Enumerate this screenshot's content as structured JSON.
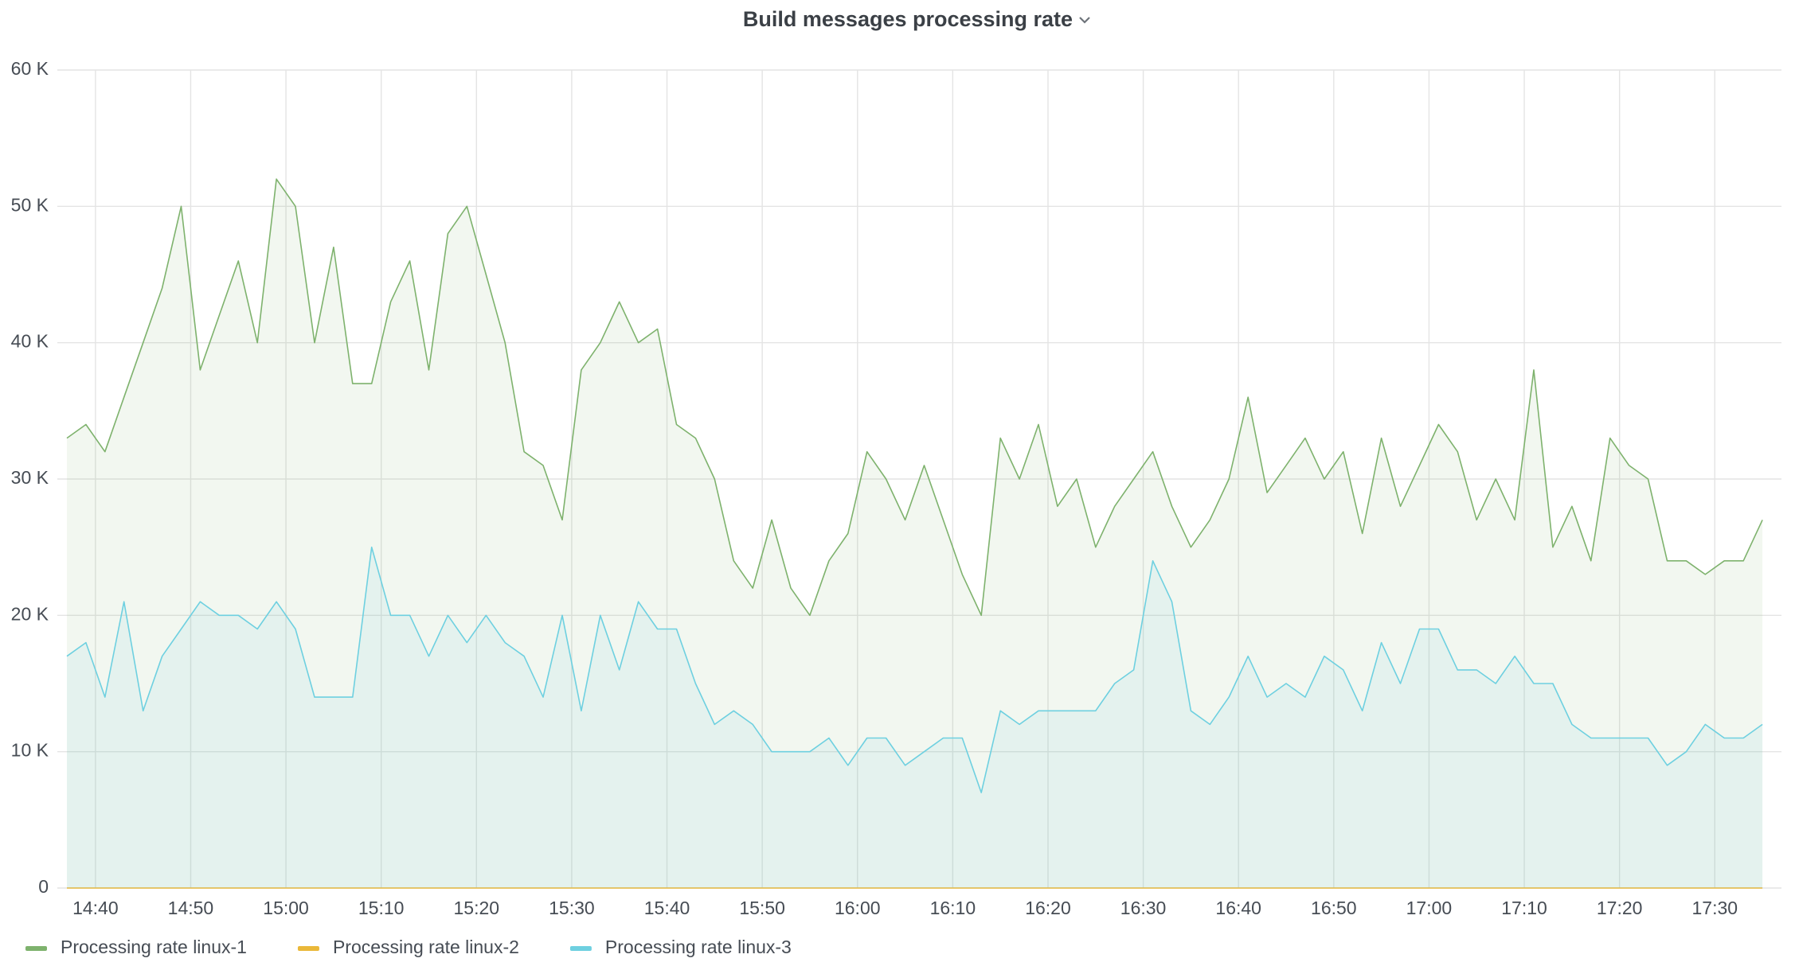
{
  "chart_data": {
    "type": "line",
    "title": "Build messages processing rate",
    "x": [
      "14:37",
      "14:39",
      "14:41",
      "14:43",
      "14:45",
      "14:47",
      "14:49",
      "14:51",
      "14:53",
      "14:55",
      "14:57",
      "14:59",
      "15:01",
      "15:03",
      "15:05",
      "15:07",
      "15:09",
      "15:11",
      "15:13",
      "15:15",
      "15:17",
      "15:19",
      "15:21",
      "15:23",
      "15:25",
      "15:27",
      "15:29",
      "15:31",
      "15:33",
      "15:35",
      "15:37",
      "15:39",
      "15:41",
      "15:43",
      "15:45",
      "15:47",
      "15:49",
      "15:51",
      "15:53",
      "15:55",
      "15:57",
      "15:59",
      "16:01",
      "16:03",
      "16:05",
      "16:07",
      "16:09",
      "16:11",
      "16:13",
      "16:15",
      "16:17",
      "16:19",
      "16:21",
      "16:23",
      "16:25",
      "16:27",
      "16:29",
      "16:31",
      "16:33",
      "16:35",
      "16:37",
      "16:39",
      "16:41",
      "16:43",
      "16:45",
      "16:47",
      "16:49",
      "16:51",
      "16:53",
      "16:55",
      "16:57",
      "16:59",
      "17:01",
      "17:03",
      "17:05",
      "17:07",
      "17:09",
      "17:11",
      "17:13",
      "17:15",
      "17:17",
      "17:19",
      "17:21",
      "17:23",
      "17:25",
      "17:27",
      "17:29",
      "17:31",
      "17:33",
      "17:35"
    ],
    "series": [
      {
        "name": "Processing rate linux-1",
        "color": "#7eb26d",
        "values": [
          33000,
          34000,
          32000,
          36000,
          40000,
          44000,
          50000,
          38000,
          42000,
          46000,
          40000,
          52000,
          50000,
          40000,
          47000,
          37000,
          37000,
          43000,
          46000,
          38000,
          48000,
          50000,
          45000,
          40000,
          32000,
          31000,
          27000,
          38000,
          40000,
          43000,
          40000,
          41000,
          34000,
          33000,
          30000,
          24000,
          22000,
          27000,
          22000,
          20000,
          24000,
          26000,
          32000,
          30000,
          27000,
          31000,
          27000,
          23000,
          20000,
          33000,
          30000,
          34000,
          28000,
          30000,
          25000,
          28000,
          30000,
          32000,
          28000,
          25000,
          27000,
          30000,
          36000,
          29000,
          31000,
          33000,
          30000,
          32000,
          26000,
          33000,
          28000,
          31000,
          34000,
          32000,
          27000,
          30000,
          27000,
          38000,
          25000,
          28000,
          24000,
          33000,
          31000,
          30000,
          24000,
          24000,
          23000,
          24000,
          24000,
          27000
        ]
      },
      {
        "name": "Processing rate linux-2",
        "color": "#eab839",
        "values": [
          0,
          0,
          0,
          0,
          0,
          0,
          0,
          0,
          0,
          0,
          0,
          0,
          0,
          0,
          0,
          0,
          0,
          0,
          0,
          0,
          0,
          0,
          0,
          0,
          0,
          0,
          0,
          0,
          0,
          0,
          0,
          0,
          0,
          0,
          0,
          0,
          0,
          0,
          0,
          0,
          0,
          0,
          0,
          0,
          0,
          0,
          0,
          0,
          0,
          0,
          0,
          0,
          0,
          0,
          0,
          0,
          0,
          0,
          0,
          0,
          0,
          0,
          0,
          0,
          0,
          0,
          0,
          0,
          0,
          0,
          0,
          0,
          0,
          0,
          0,
          0,
          0,
          0,
          0,
          0,
          0,
          0,
          0,
          0,
          0,
          0,
          0,
          0,
          0,
          0
        ]
      },
      {
        "name": "Processing rate linux-3",
        "color": "#6ed0e0",
        "values": [
          17000,
          18000,
          14000,
          21000,
          13000,
          17000,
          19000,
          21000,
          20000,
          20000,
          19000,
          21000,
          19000,
          14000,
          14000,
          14000,
          25000,
          20000,
          20000,
          17000,
          20000,
          18000,
          20000,
          18000,
          17000,
          14000,
          20000,
          13000,
          20000,
          16000,
          21000,
          19000,
          19000,
          15000,
          12000,
          13000,
          12000,
          10000,
          10000,
          10000,
          11000,
          9000,
          11000,
          11000,
          9000,
          10000,
          11000,
          11000,
          7000,
          13000,
          12000,
          13000,
          13000,
          13000,
          13000,
          15000,
          16000,
          24000,
          21000,
          13000,
          12000,
          14000,
          17000,
          14000,
          15000,
          14000,
          17000,
          16000,
          13000,
          18000,
          15000,
          19000,
          19000,
          16000,
          16000,
          15000,
          17000,
          15000,
          15000,
          12000,
          11000,
          11000,
          11000,
          11000,
          9000,
          10000,
          12000,
          11000,
          11000,
          12000
        ]
      }
    ],
    "xlim": [
      "14:36",
      "17:37"
    ],
    "xticks": [
      "14:40",
      "14:50",
      "15:00",
      "15:10",
      "15:20",
      "15:30",
      "15:40",
      "15:50",
      "16:00",
      "16:10",
      "16:20",
      "16:30",
      "16:40",
      "16:50",
      "17:00",
      "17:10",
      "17:20",
      "17:30"
    ],
    "ylim": [
      0,
      60000
    ],
    "yticks": [
      0,
      {
        "value": 10000,
        "label": "10 K"
      },
      {
        "value": 20000,
        "label": "20 K"
      },
      {
        "value": 30000,
        "label": "30 K"
      },
      {
        "value": 40000,
        "label": "40 K"
      },
      {
        "value": 50000,
        "label": "50 K"
      },
      {
        "value": 60000,
        "label": "60 K"
      }
    ],
    "grid": true,
    "legend": "bottom",
    "fill_opacity": 0.1
  }
}
